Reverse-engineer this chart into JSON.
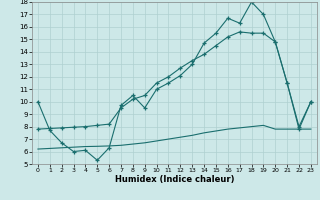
{
  "xlabel": "Humidex (Indice chaleur)",
  "ylabel": "",
  "xlim": [
    -0.5,
    23.5
  ],
  "ylim": [
    5,
    18
  ],
  "yticks": [
    5,
    6,
    7,
    8,
    9,
    10,
    11,
    12,
    13,
    14,
    15,
    16,
    17,
    18
  ],
  "xticks": [
    0,
    1,
    2,
    3,
    4,
    5,
    6,
    7,
    8,
    9,
    10,
    11,
    12,
    13,
    14,
    15,
    16,
    17,
    18,
    19,
    20,
    21,
    22,
    23
  ],
  "bg_color": "#cde8e8",
  "line_color": "#1a6e6e",
  "grid_color": "#afd0d0",
  "line1_x": [
    0,
    1,
    2,
    3,
    4,
    5,
    6,
    7,
    8,
    9,
    10,
    11,
    12,
    13,
    14,
    15,
    16,
    17,
    18,
    19,
    20,
    21,
    22,
    23
  ],
  "line1_y": [
    10,
    7.7,
    6.7,
    6.0,
    6.1,
    5.3,
    6.3,
    9.7,
    10.5,
    9.5,
    11.0,
    11.5,
    12.1,
    13.0,
    14.7,
    15.5,
    16.7,
    16.3,
    18.0,
    17.0,
    14.8,
    11.5,
    7.8,
    10.0
  ],
  "line2_x": [
    0,
    1,
    2,
    3,
    4,
    5,
    6,
    7,
    8,
    9,
    10,
    11,
    12,
    13,
    14,
    15,
    16,
    17,
    18,
    19,
    20,
    21,
    22,
    23
  ],
  "line2_y": [
    7.8,
    7.85,
    7.9,
    7.95,
    8.0,
    8.1,
    8.2,
    9.5,
    10.2,
    10.5,
    11.5,
    12.0,
    12.7,
    13.3,
    13.8,
    14.5,
    15.2,
    15.6,
    15.5,
    15.5,
    14.8,
    11.5,
    8.0,
    10.0
  ],
  "line3_x": [
    0,
    1,
    2,
    3,
    4,
    5,
    6,
    7,
    8,
    9,
    10,
    11,
    12,
    13,
    14,
    15,
    16,
    17,
    18,
    19,
    20,
    21,
    22,
    23
  ],
  "line3_y": [
    6.2,
    6.25,
    6.3,
    6.35,
    6.4,
    6.42,
    6.45,
    6.5,
    6.6,
    6.7,
    6.85,
    7.0,
    7.15,
    7.3,
    7.5,
    7.65,
    7.8,
    7.9,
    8.0,
    8.1,
    7.8,
    7.8,
    7.8,
    7.8
  ]
}
